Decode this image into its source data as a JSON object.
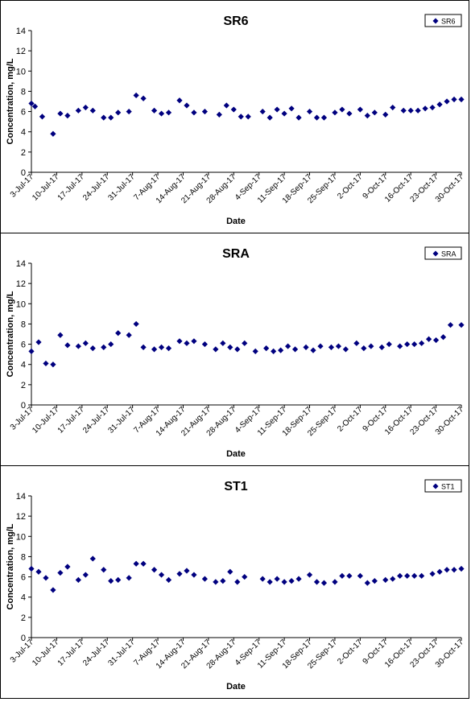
{
  "x_tick_labels": [
    "3-Jul-17",
    "10-Jul-17",
    "17-Jul-17",
    "24-Jul-17",
    "31-Jul-17",
    "7-Aug-17",
    "14-Aug-17",
    "21-Aug-17",
    "28-Aug-17",
    "4-Sep-17",
    "11-Sep-17",
    "18-Sep-17",
    "25-Sep-17",
    "2-Oct-17",
    "9-Oct-17",
    "16-Oct-17",
    "23-Oct-17",
    "30-Oct-17"
  ],
  "y_ticks": [
    0,
    2,
    4,
    6,
    8,
    10,
    12,
    14
  ],
  "chart_data": [
    {
      "type": "scatter",
      "title": "SR6",
      "xlabel": "Date",
      "ylabel": "Concentration, mg/L",
      "ylim": [
        0,
        14
      ],
      "xlim": [
        "3-Jul-17",
        "30-Oct-17"
      ],
      "legend": "top-right",
      "marker_color": "#00007f",
      "series": [
        {
          "name": "SR6",
          "x": [
            "2017-07-03",
            "2017-07-04",
            "2017-07-06",
            "2017-07-09",
            "2017-07-11",
            "2017-07-13",
            "2017-07-16",
            "2017-07-18",
            "2017-07-20",
            "2017-07-23",
            "2017-07-25",
            "2017-07-27",
            "2017-07-30",
            "2017-08-01",
            "2017-08-03",
            "2017-08-06",
            "2017-08-08",
            "2017-08-10",
            "2017-08-13",
            "2017-08-15",
            "2017-08-17",
            "2017-08-20",
            "2017-08-24",
            "2017-08-26",
            "2017-08-28",
            "2017-08-30",
            "2017-09-01",
            "2017-09-05",
            "2017-09-07",
            "2017-09-09",
            "2017-09-11",
            "2017-09-13",
            "2017-09-15",
            "2017-09-18",
            "2017-09-20",
            "2017-09-22",
            "2017-09-25",
            "2017-09-27",
            "2017-09-29",
            "2017-10-02",
            "2017-10-04",
            "2017-10-06",
            "2017-10-09",
            "2017-10-11",
            "2017-10-14",
            "2017-10-16",
            "2017-10-18",
            "2017-10-20",
            "2017-10-22",
            "2017-10-24",
            "2017-10-26",
            "2017-10-28",
            "2017-10-30"
          ],
          "y": [
            6.8,
            6.5,
            5.5,
            3.8,
            5.8,
            5.6,
            6.1,
            6.4,
            6.1,
            5.4,
            5.4,
            5.9,
            6.0,
            7.6,
            7.3,
            6.1,
            5.8,
            5.9,
            7.1,
            6.6,
            5.9,
            6.0,
            5.7,
            6.6,
            6.2,
            5.5,
            5.5,
            6.0,
            5.4,
            6.2,
            5.8,
            6.3,
            5.4,
            6.0,
            5.4,
            5.4,
            5.9,
            6.2,
            5.8,
            6.2,
            5.6,
            5.9,
            5.7,
            6.4,
            6.1,
            6.1,
            6.1,
            6.3,
            6.4,
            6.7,
            7.0,
            7.2,
            7.2
          ]
        }
      ]
    },
    {
      "type": "scatter",
      "title": "SRA",
      "xlabel": "Date",
      "ylabel": "Concentration, mg/L",
      "ylim": [
        0,
        14
      ],
      "xlim": [
        "3-Jul-17",
        "30-Oct-17"
      ],
      "legend": "top-right",
      "marker_color": "#00007f",
      "series": [
        {
          "name": "SRA",
          "x": [
            "2017-07-03",
            "2017-07-05",
            "2017-07-07",
            "2017-07-09",
            "2017-07-11",
            "2017-07-13",
            "2017-07-16",
            "2017-07-18",
            "2017-07-20",
            "2017-07-23",
            "2017-07-25",
            "2017-07-27",
            "2017-07-30",
            "2017-08-01",
            "2017-08-03",
            "2017-08-06",
            "2017-08-08",
            "2017-08-10",
            "2017-08-13",
            "2017-08-15",
            "2017-08-17",
            "2017-08-20",
            "2017-08-23",
            "2017-08-25",
            "2017-08-27",
            "2017-08-29",
            "2017-08-31",
            "2017-09-03",
            "2017-09-06",
            "2017-09-08",
            "2017-09-10",
            "2017-09-12",
            "2017-09-14",
            "2017-09-17",
            "2017-09-19",
            "2017-09-21",
            "2017-09-24",
            "2017-09-26",
            "2017-09-28",
            "2017-10-01",
            "2017-10-03",
            "2017-10-05",
            "2017-10-08",
            "2017-10-10",
            "2017-10-13",
            "2017-10-15",
            "2017-10-17",
            "2017-10-19",
            "2017-10-21",
            "2017-10-23",
            "2017-10-25",
            "2017-10-27",
            "2017-10-30"
          ],
          "y": [
            5.3,
            6.2,
            4.1,
            4.0,
            6.9,
            5.9,
            5.8,
            6.1,
            5.6,
            5.7,
            6.0,
            7.1,
            6.9,
            8.0,
            5.7,
            5.5,
            5.7,
            5.6,
            6.3,
            6.1,
            6.3,
            6.0,
            5.5,
            6.1,
            5.7,
            5.5,
            6.1,
            5.3,
            5.6,
            5.3,
            5.4,
            5.8,
            5.5,
            5.7,
            5.4,
            5.8,
            5.7,
            5.8,
            5.5,
            6.1,
            5.6,
            5.8,
            5.7,
            6.0,
            5.8,
            6.0,
            6.0,
            6.1,
            6.5,
            6.4,
            6.7,
            7.9,
            7.9
          ]
        }
      ]
    },
    {
      "type": "scatter",
      "title": "ST1",
      "xlabel": "Date",
      "ylabel": "Concentration, mg/L",
      "ylim": [
        0,
        14
      ],
      "xlim": [
        "3-Jul-17",
        "30-Oct-17"
      ],
      "legend": "top-right",
      "marker_color": "#00007f",
      "series": [
        {
          "name": "ST1",
          "x": [
            "2017-07-03",
            "2017-07-05",
            "2017-07-07",
            "2017-07-09",
            "2017-07-11",
            "2017-07-13",
            "2017-07-16",
            "2017-07-18",
            "2017-07-20",
            "2017-07-23",
            "2017-07-25",
            "2017-07-27",
            "2017-07-30",
            "2017-08-01",
            "2017-08-03",
            "2017-08-06",
            "2017-08-08",
            "2017-08-10",
            "2017-08-13",
            "2017-08-15",
            "2017-08-17",
            "2017-08-20",
            "2017-08-23",
            "2017-08-25",
            "2017-08-27",
            "2017-08-29",
            "2017-08-31",
            "2017-09-05",
            "2017-09-07",
            "2017-09-09",
            "2017-09-11",
            "2017-09-13",
            "2017-09-15",
            "2017-09-18",
            "2017-09-20",
            "2017-09-22",
            "2017-09-25",
            "2017-09-27",
            "2017-09-29",
            "2017-10-02",
            "2017-10-04",
            "2017-10-06",
            "2017-10-09",
            "2017-10-11",
            "2017-10-13",
            "2017-10-15",
            "2017-10-17",
            "2017-10-19",
            "2017-10-22",
            "2017-10-24",
            "2017-10-26",
            "2017-10-28",
            "2017-10-30"
          ],
          "y": [
            6.8,
            6.5,
            5.9,
            4.7,
            6.4,
            7.0,
            5.7,
            6.2,
            7.8,
            6.7,
            5.6,
            5.7,
            5.9,
            7.3,
            7.3,
            6.7,
            6.2,
            5.7,
            6.3,
            6.6,
            6.2,
            5.8,
            5.5,
            5.6,
            6.5,
            5.5,
            6.0,
            5.8,
            5.5,
            5.8,
            5.5,
            5.6,
            5.8,
            6.2,
            5.5,
            5.4,
            5.5,
            6.1,
            6.1,
            6.1,
            5.4,
            5.6,
            5.7,
            5.8,
            6.1,
            6.1,
            6.1,
            6.1,
            6.3,
            6.5,
            6.7,
            6.7,
            6.8
          ]
        }
      ]
    }
  ]
}
